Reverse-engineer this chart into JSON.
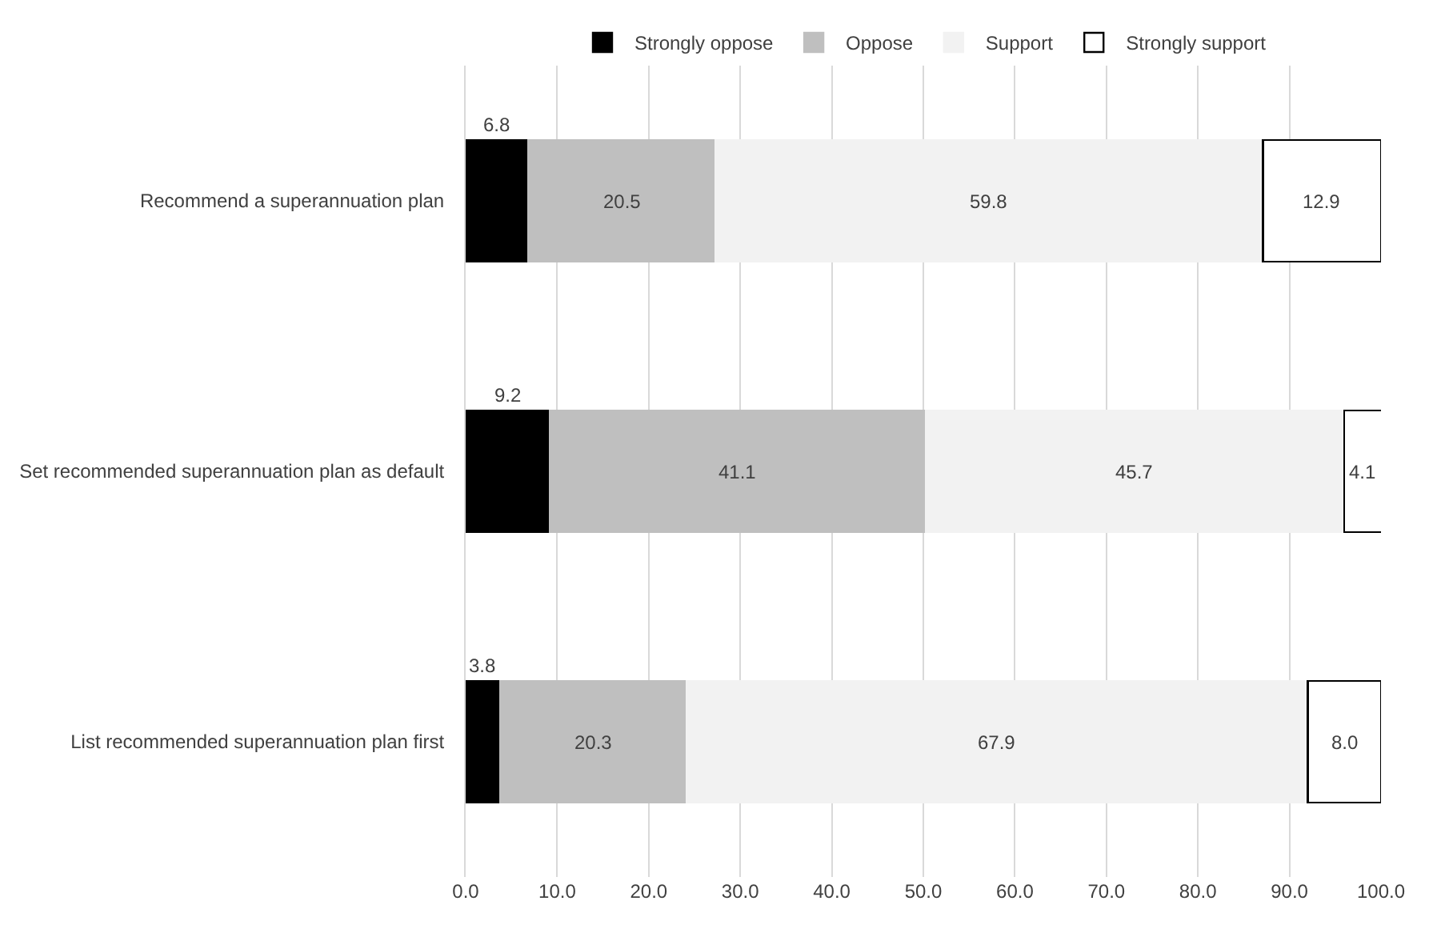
{
  "chart_data": {
    "type": "bar",
    "orientation": "horizontal",
    "stacked": true,
    "categories": [
      "Recommend a superannuation plan",
      "Set recommended superannuation plan as default",
      "List recommended superannuation plan first"
    ],
    "series": [
      {
        "name": "Strongly oppose",
        "color": "#000000",
        "values": [
          6.8,
          9.2,
          3.8
        ],
        "value_labels": [
          "6.8",
          "9.2",
          "3.8"
        ]
      },
      {
        "name": "Oppose",
        "color": "#bfbfbf",
        "values": [
          20.5,
          41.1,
          20.3
        ],
        "value_labels": [
          "20.5",
          "41.1",
          "20.3"
        ]
      },
      {
        "name": "Support",
        "color": "#f2f2f2",
        "values": [
          59.8,
          45.7,
          67.9
        ],
        "value_labels": [
          "59.8",
          "45.7",
          "67.9"
        ]
      },
      {
        "name": "Strongly support",
        "color": "#ffffff",
        "values": [
          12.9,
          4.1,
          8.0
        ],
        "value_labels": [
          "12.9",
          "4.1",
          "8.0"
        ]
      }
    ],
    "xlim": [
      0,
      100
    ],
    "xticks": [
      {
        "value": 0,
        "label": "0.0"
      },
      {
        "value": 10,
        "label": "10.0"
      },
      {
        "value": 20,
        "label": "20.0"
      },
      {
        "value": 30,
        "label": "30.0"
      },
      {
        "value": 40,
        "label": "40.0"
      },
      {
        "value": 50,
        "label": "50.0"
      },
      {
        "value": 60,
        "label": "60.0"
      },
      {
        "value": 70,
        "label": "70.0"
      },
      {
        "value": 80,
        "label": "80.0"
      },
      {
        "value": 90,
        "label": "90.0"
      },
      {
        "value": 100,
        "label": "100.0"
      }
    ],
    "grid": "x",
    "legend": "top"
  }
}
